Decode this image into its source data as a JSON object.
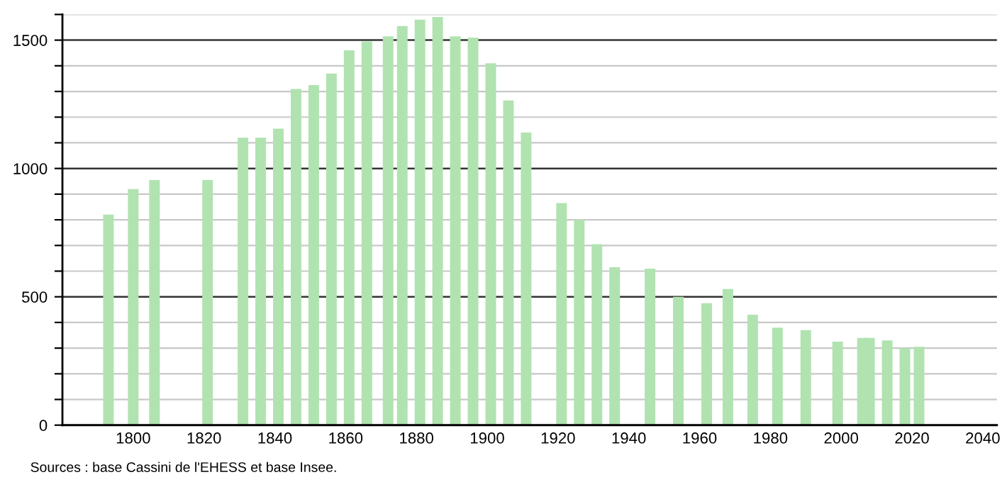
{
  "chart_data": {
    "type": "bar",
    "x": [
      1793,
      1800,
      1806,
      1821,
      1831,
      1836,
      1841,
      1846,
      1851,
      1856,
      1861,
      1866,
      1872,
      1876,
      1881,
      1886,
      1891,
      1896,
      1901,
      1906,
      1911,
      1921,
      1926,
      1931,
      1936,
      1946,
      1954,
      1962,
      1968,
      1975,
      1982,
      1990,
      1999,
      2006,
      2008,
      2013,
      2018,
      2022
    ],
    "series": [
      {
        "color": "#b0e3b0",
        "values": [
          820,
          920,
          955,
          955,
          1120,
          1120,
          1155,
          1310,
          1325,
          1370,
          1460,
          1495,
          1515,
          1555,
          1580,
          1590,
          1515,
          1510,
          1410,
          1265,
          1140,
          865,
          800,
          705,
          615,
          610,
          500,
          475,
          530,
          430,
          380,
          370,
          325,
          340,
          340,
          330,
          300,
          305
        ]
      }
    ],
    "xlim": [
      1780,
      2044
    ],
    "xticks": [
      1800,
      1820,
      1840,
      1860,
      1880,
      1900,
      1920,
      1940,
      1960,
      1980,
      2000,
      2020,
      2040
    ],
    "ylim": [
      0,
      1600
    ],
    "yticks": [
      0,
      {
        "value": 100,
        "label": null
      },
      {
        "value": 200,
        "label": null
      },
      {
        "value": 300,
        "label": null
      },
      {
        "value": 400,
        "label": null
      },
      500,
      {
        "value": 600,
        "label": null
      },
      {
        "value": 700,
        "label": null
      },
      {
        "value": 800,
        "label": null
      },
      {
        "value": 900,
        "label": null
      },
      1000,
      {
        "value": 1100,
        "label": null
      },
      {
        "value": 1200,
        "label": null
      },
      {
        "value": 1300,
        "label": null
      },
      {
        "value": 1400,
        "label": null
      },
      1500,
      {
        "value": 1600,
        "label": null
      }
    ],
    "grid": "y",
    "annotations": [
      "Sources : base Cassini de l'EHESS et base Insee."
    ]
  }
}
